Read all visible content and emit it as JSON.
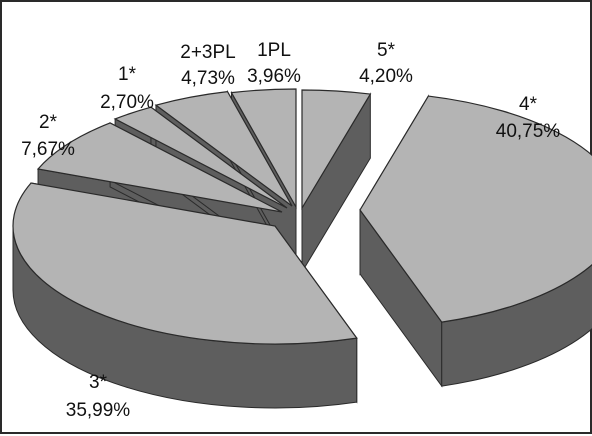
{
  "chart_data": {
    "type": "pie",
    "title": "",
    "style": "3d-exploded",
    "colors": {
      "top": "#b4b4b4",
      "side": "#5e5e5e",
      "edge": "#2a2a2a",
      "label": "#111111"
    },
    "slices": [
      {
        "name": "5*",
        "value": 4.2,
        "label": "5*",
        "value_label": "4,20%"
      },
      {
        "name": "4*",
        "value": 40.75,
        "label": "4*",
        "value_label": "40,75%"
      },
      {
        "name": "3*",
        "value": 35.99,
        "label": "3*",
        "value_label": "35,99%"
      },
      {
        "name": "2*",
        "value": 7.67,
        "label": "2*",
        "value_label": "7,67%"
      },
      {
        "name": "1*",
        "value": 2.7,
        "label": "1*",
        "value_label": "2,70%"
      },
      {
        "name": "2+3PL",
        "value": 4.73,
        "label": "2+3PL",
        "value_label": "4,73%"
      },
      {
        "name": "1PL",
        "value": 3.96,
        "label": "1PL",
        "value_label": "3,96%"
      }
    ]
  }
}
